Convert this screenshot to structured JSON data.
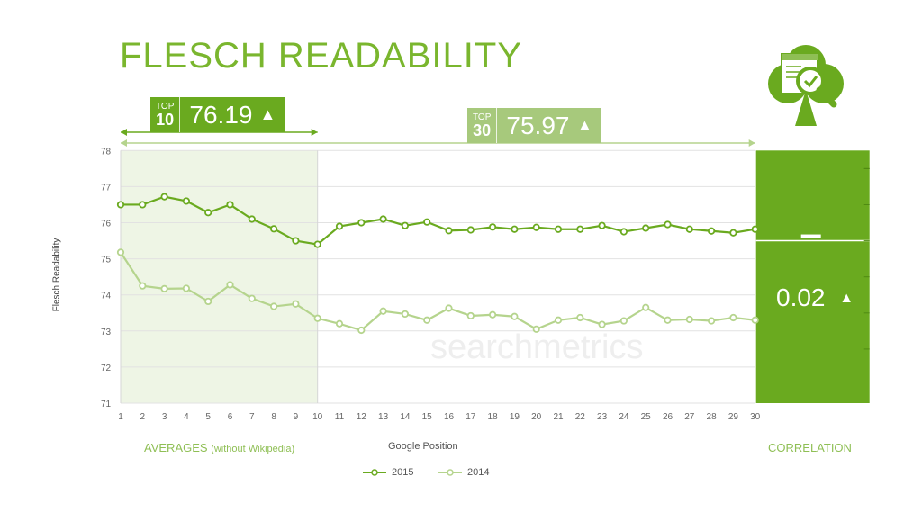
{
  "title": "FLESCH READABILITY",
  "badges": {
    "top10": {
      "tag_top": "TOP",
      "tag_num": "10",
      "value": "76.19",
      "arrow": "▲"
    },
    "top30": {
      "tag_top": "TOP",
      "tag_num": "30",
      "value": "75.97",
      "arrow": "▲"
    }
  },
  "correlation": {
    "value": "0.02",
    "arrow": "▲",
    "label": "CORRELATION"
  },
  "labels": {
    "averages": "AVERAGES",
    "averages_sub": "(without Wikipedia)",
    "google_position": "Google Position",
    "watermark": "searchmetrics"
  },
  "colors": {
    "series_2015": "#6aaa1f",
    "series_2014": "#b5d48d",
    "correlation_box": "#6aaa1f",
    "top10_shade": "#eef5e5"
  },
  "icon": {
    "name": "club-document-search-icon"
  },
  "chart_data": {
    "type": "line",
    "title": "FLESCH READABILITY",
    "xlabel": "Google Position",
    "ylabel": "Flesch Readability",
    "x": [
      1,
      2,
      3,
      4,
      5,
      6,
      7,
      8,
      9,
      10,
      11,
      12,
      13,
      14,
      15,
      16,
      17,
      18,
      19,
      20,
      21,
      22,
      23,
      24,
      25,
      26,
      27,
      28,
      29,
      30
    ],
    "ylim": [
      71,
      78
    ],
    "yticks": [
      71,
      72,
      73,
      74,
      75,
      76,
      77,
      78
    ],
    "grid": true,
    "legend_position": "bottom-center",
    "series": [
      {
        "name": "2015",
        "values": [
          76.5,
          76.5,
          76.72,
          76.6,
          76.28,
          76.5,
          76.1,
          75.83,
          75.5,
          75.4,
          75.9,
          76.0,
          76.1,
          75.92,
          76.02,
          75.78,
          75.8,
          75.88,
          75.82,
          75.87,
          75.82,
          75.82,
          75.92,
          75.75,
          75.85,
          75.95,
          75.82,
          75.77,
          75.72,
          75.82
        ]
      },
      {
        "name": "2014",
        "values": [
          75.18,
          74.25,
          74.17,
          74.18,
          73.82,
          74.28,
          73.9,
          73.68,
          73.75,
          73.35,
          73.2,
          73.02,
          73.55,
          73.47,
          73.3,
          73.63,
          73.42,
          73.45,
          73.4,
          73.05,
          73.3,
          73.37,
          73.18,
          73.28,
          73.65,
          73.3,
          73.32,
          73.28,
          73.37,
          73.3
        ]
      }
    ]
  }
}
